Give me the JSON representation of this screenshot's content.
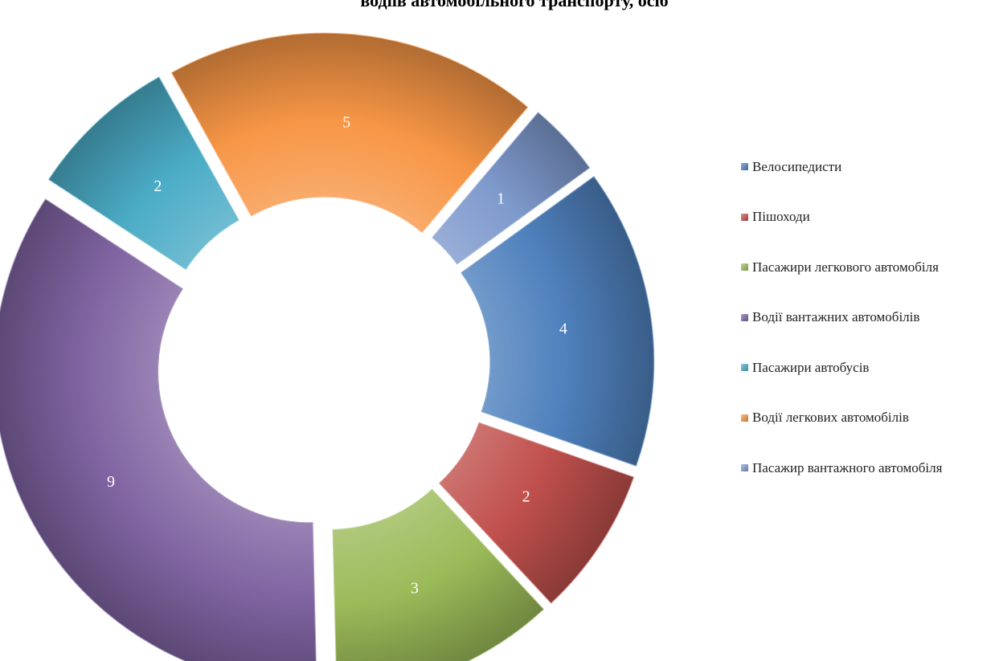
{
  "chart_data": {
    "type": "pie",
    "variant": "donut-exploded",
    "title": "водіїв автомобільного транспорту, осіб",
    "legend_position": "right",
    "slices": [
      {
        "name": "Велосипедисти",
        "value": 4,
        "color": "#4F81BD"
      },
      {
        "name": "Пішоходи",
        "value": 2,
        "color": "#C0504D"
      },
      {
        "name": "Пасажири легкового автомобіля",
        "value": 3,
        "color": "#9BBB59"
      },
      {
        "name": "Водії вантажних автомобілів",
        "value": 9,
        "color": "#8064A2"
      },
      {
        "name": "Пасажири автобусів",
        "value": 2,
        "color": "#4BACC6"
      },
      {
        "name": "Водії легкових автомобілів",
        "value": 5,
        "color": "#F79646"
      },
      {
        "name": "Пасажир вантажного автомобіля",
        "value": 1,
        "color": "#7F9ACD"
      }
    ]
  }
}
